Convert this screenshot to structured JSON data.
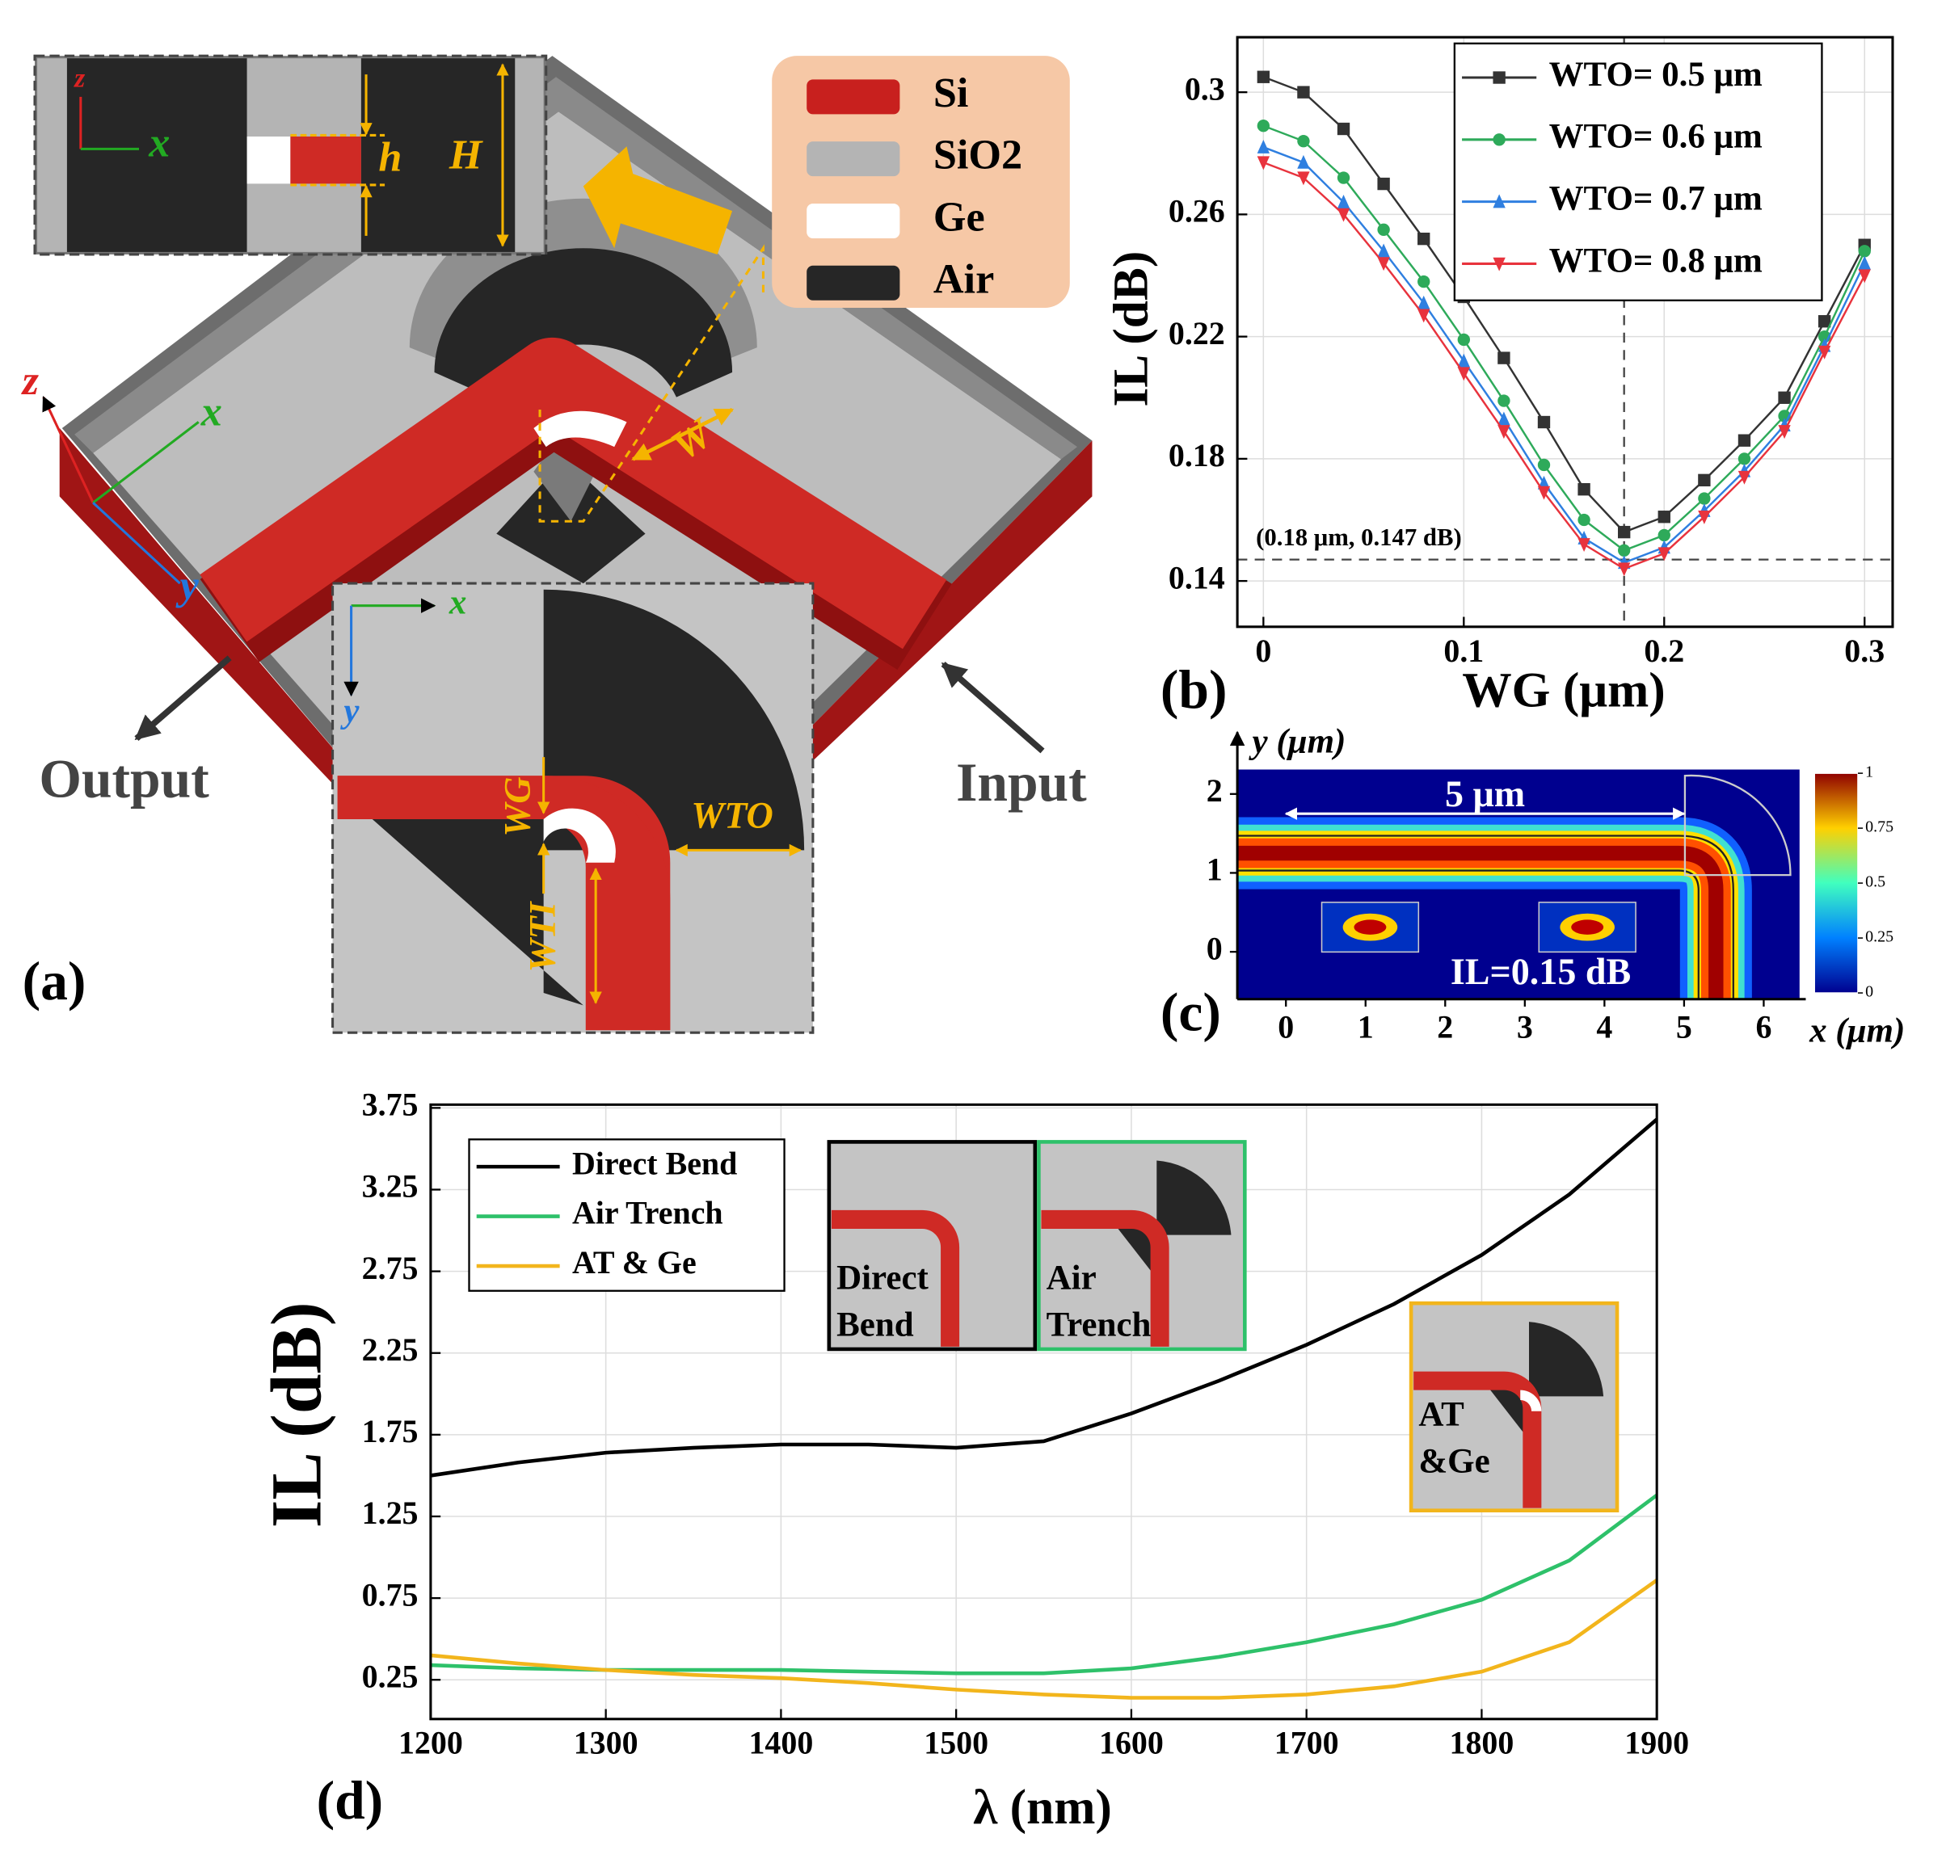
{
  "diagram": {
    "panel_label": "(a)",
    "materials": [
      "Si",
      "SiO2",
      "Ge",
      "Air"
    ],
    "material_colors": [
      "#c8201e",
      "#b4b4b4",
      "#ffffff",
      "#262626"
    ],
    "axis_x": "x",
    "axis_y": "y",
    "axis_z": "z",
    "inset_x": "x",
    "inset_z": "z",
    "bottom_x": "x",
    "bottom_y": "y",
    "h": "h",
    "H": "H",
    "W": "W",
    "WG": "WG",
    "WTO": "WTO",
    "WTI": "WTI",
    "output": "Output",
    "input": "Input"
  },
  "chart_data": [
    {
      "type": "line",
      "panel_label": "(b)",
      "xlabel": "WG (μm)",
      "ylabel": "IL (dB)",
      "x": [
        0,
        0.02,
        0.04,
        0.06,
        0.08,
        0.1,
        0.12,
        0.14,
        0.16,
        0.18,
        0.2,
        0.22,
        0.24,
        0.26,
        0.28,
        0.3
      ],
      "series": [
        {
          "name": "WTO= 0.5 μm",
          "color": "#333333",
          "marker": "square",
          "values": [
            0.305,
            0.3,
            0.288,
            0.27,
            0.252,
            0.233,
            0.213,
            0.192,
            0.17,
            0.156,
            0.161,
            0.173,
            0.186,
            0.2,
            0.225,
            0.25
          ]
        },
        {
          "name": "WTO= 0.6 μm",
          "color": "#2eaa5a",
          "marker": "circle",
          "values": [
            0.289,
            0.284,
            0.272,
            0.255,
            0.238,
            0.219,
            0.199,
            0.178,
            0.16,
            0.15,
            0.155,
            0.167,
            0.18,
            0.194,
            0.22,
            0.248
          ]
        },
        {
          "name": "WTO= 0.7 μm",
          "color": "#2f7fe0",
          "marker": "triangle-up",
          "values": [
            0.282,
            0.277,
            0.264,
            0.248,
            0.231,
            0.212,
            0.193,
            0.172,
            0.154,
            0.146,
            0.151,
            0.163,
            0.176,
            0.191,
            0.217,
            0.244
          ]
        },
        {
          "name": "WTO= 0.8 μm",
          "color": "#e8333d",
          "marker": "triangle-down",
          "values": [
            0.277,
            0.272,
            0.26,
            0.244,
            0.227,
            0.208,
            0.189,
            0.169,
            0.152,
            0.144,
            0.149,
            0.161,
            0.174,
            0.189,
            0.215,
            0.24
          ]
        }
      ],
      "xlim": [
        -0.013,
        0.314
      ],
      "ylim": [
        0.125,
        0.318
      ],
      "xticks": [
        0,
        0.1,
        0.2,
        0.3
      ],
      "yticks": [
        0.14,
        0.18,
        0.22,
        0.26,
        0.3
      ],
      "grid": true,
      "vline": 0.18,
      "hline": 0.147,
      "annotation": "(0.18 μm, 0.147 dB)",
      "legend": "upper right"
    },
    {
      "type": "field",
      "panel_label": "(c)",
      "xlabel": "x (μm)",
      "ylabel": "y (μm)",
      "xlim": [
        -0.61,
        6.45
      ],
      "ylim": [
        -0.6,
        2.31
      ],
      "xticks": [
        0,
        1,
        2,
        3,
        4,
        5,
        6
      ],
      "yticks": [
        0,
        1,
        2
      ],
      "clim": [
        0,
        1
      ],
      "cticks": [
        0,
        0.25,
        0.5,
        0.75,
        1
      ],
      "length_label": "5 μm",
      "annotation": "IL=0.15 dB"
    },
    {
      "type": "line",
      "panel_label": "(d)",
      "xlabel": "λ (nm)",
      "ylabel": "IL (dB)",
      "x": [
        1200,
        1250,
        1300,
        1350,
        1400,
        1450,
        1500,
        1550,
        1600,
        1650,
        1700,
        1750,
        1800,
        1850,
        1900
      ],
      "series": [
        {
          "name": "Direct Bend",
          "color": "#000000",
          "values": [
            1.5,
            1.58,
            1.64,
            1.67,
            1.69,
            1.69,
            1.67,
            1.71,
            1.88,
            2.08,
            2.3,
            2.55,
            2.85,
            3.22,
            3.68
          ]
        },
        {
          "name": "Air Trench",
          "color": "#2ec16a",
          "values": [
            0.34,
            0.32,
            0.31,
            0.31,
            0.31,
            0.3,
            0.29,
            0.29,
            0.32,
            0.39,
            0.48,
            0.59,
            0.74,
            0.98,
            1.38
          ]
        },
        {
          "name": "AT & Ge",
          "color": "#f2b51c",
          "values": [
            0.4,
            0.35,
            0.31,
            0.28,
            0.26,
            0.23,
            0.19,
            0.16,
            0.14,
            0.14,
            0.16,
            0.21,
            0.3,
            0.48,
            0.86
          ]
        }
      ],
      "xlim": [
        1200,
        1900
      ],
      "ylim": [
        0.01,
        3.77
      ],
      "xticks": [
        1200,
        1300,
        1400,
        1500,
        1600,
        1700,
        1800,
        1900
      ],
      "yticks": [
        0.25,
        0.75,
        1.25,
        1.75,
        2.25,
        2.75,
        3.25,
        3.75
      ],
      "grid": true,
      "legend": "upper left",
      "insets": [
        [
          "Direct",
          "Bend"
        ],
        [
          "Air",
          "Trench"
        ],
        [
          "AT",
          "&Ge"
        ]
      ]
    }
  ]
}
